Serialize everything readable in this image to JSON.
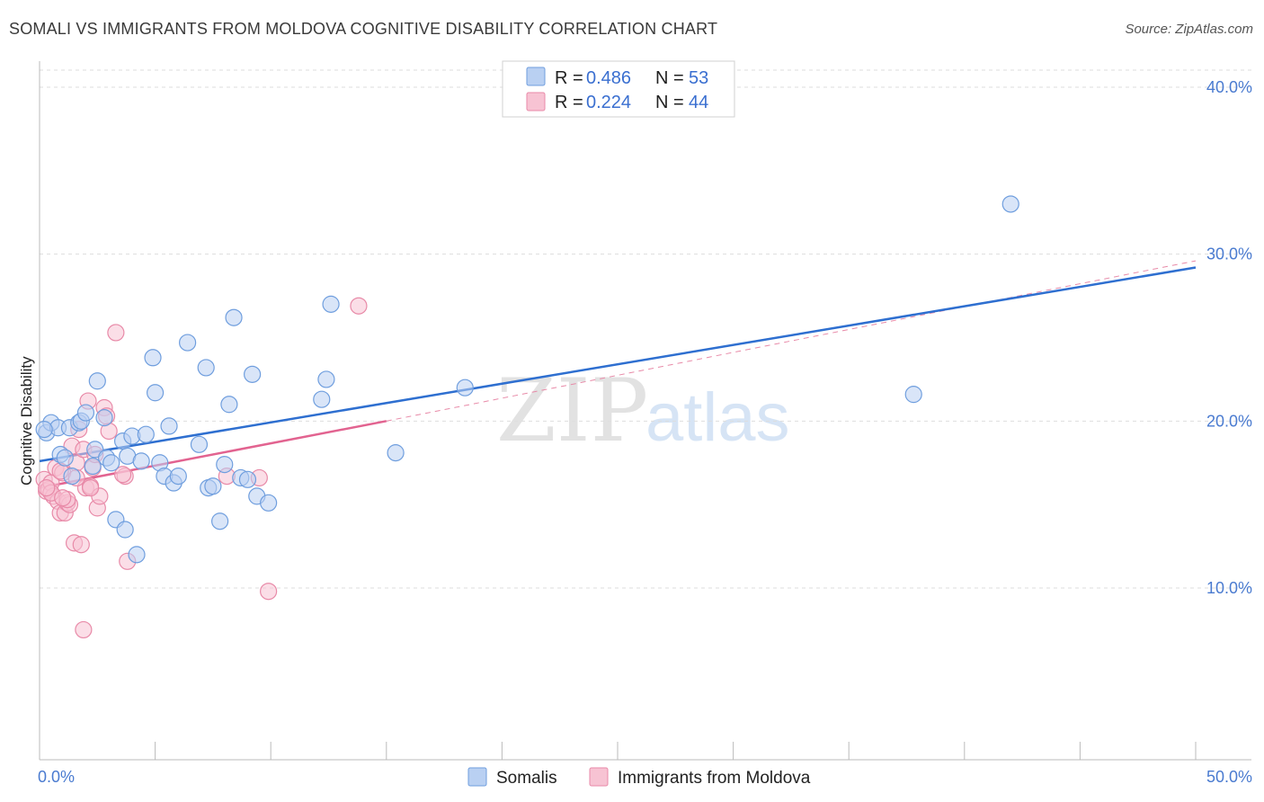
{
  "title": "SOMALI VS IMMIGRANTS FROM MOLDOVA COGNITIVE DISABILITY CORRELATION CHART",
  "source": "Source: ZipAtlas.com",
  "watermark": {
    "zip": "ZIP",
    "atlas": "atlas"
  },
  "colors": {
    "somali_fill": "#b9d0f2",
    "somali_stroke": "#6f9ede",
    "somali_line": "#2e6fd0",
    "moldova_fill": "#f7c3d3",
    "moldova_stroke": "#e88aa8",
    "moldova_line": "#e26390",
    "grid": "#dddddd"
  },
  "legend": {
    "rows": [
      {
        "r_label": "R = ",
        "r_value": "0.486",
        "n_label": "N = ",
        "n_value": "53"
      },
      {
        "r_label": "R = ",
        "r_value": "0.224",
        "n_label": "N = ",
        "n_value": "44"
      }
    ]
  },
  "chart_data": {
    "type": "scatter",
    "title": "SOMALI VS IMMIGRANTS FROM MOLDOVA COGNITIVE DISABILITY CORRELATION CHART",
    "xlabel": "",
    "ylabel": "Cognitive Disability",
    "xlim": [
      0,
      50
    ],
    "ylim": [
      0,
      42
    ],
    "x_tick_labels": [
      "0.0%",
      "50.0%"
    ],
    "y_ticks": [
      10,
      20,
      30,
      40
    ],
    "y_tick_labels": [
      "10.0%",
      "20.0%",
      "30.0%",
      "40.0%"
    ],
    "grid": true,
    "legend_position": "bottom",
    "series": [
      {
        "name": "Somalis",
        "points": [
          [
            0.3,
            19.3
          ],
          [
            0.5,
            19.9
          ],
          [
            0.8,
            19.6
          ],
          [
            0.9,
            18.0
          ],
          [
            1.1,
            17.8
          ],
          [
            1.3,
            19.6
          ],
          [
            1.4,
            16.7
          ],
          [
            1.7,
            19.9
          ],
          [
            1.8,
            20.0
          ],
          [
            2.0,
            20.5
          ],
          [
            2.3,
            17.3
          ],
          [
            2.4,
            18.3
          ],
          [
            2.5,
            22.4
          ],
          [
            2.8,
            20.2
          ],
          [
            2.9,
            17.8
          ],
          [
            3.1,
            17.5
          ],
          [
            3.3,
            14.1
          ],
          [
            3.6,
            18.8
          ],
          [
            3.7,
            13.5
          ],
          [
            3.8,
            17.9
          ],
          [
            4.0,
            19.1
          ],
          [
            4.2,
            12.0
          ],
          [
            4.4,
            17.6
          ],
          [
            4.6,
            19.2
          ],
          [
            4.9,
            23.8
          ],
          [
            5.0,
            21.7
          ],
          [
            5.2,
            17.5
          ],
          [
            5.4,
            16.7
          ],
          [
            5.6,
            19.7
          ],
          [
            5.8,
            16.3
          ],
          [
            6.0,
            16.7
          ],
          [
            6.4,
            24.7
          ],
          [
            6.9,
            18.6
          ],
          [
            7.2,
            23.2
          ],
          [
            7.3,
            16.0
          ],
          [
            7.5,
            16.1
          ],
          [
            7.8,
            14.0
          ],
          [
            8.0,
            17.4
          ],
          [
            8.2,
            21.0
          ],
          [
            8.4,
            26.2
          ],
          [
            8.7,
            16.6
          ],
          [
            9.0,
            16.5
          ],
          [
            9.2,
            22.8
          ],
          [
            9.4,
            15.5
          ],
          [
            9.9,
            15.1
          ],
          [
            12.2,
            21.3
          ],
          [
            12.4,
            22.5
          ],
          [
            12.6,
            27.0
          ],
          [
            15.4,
            18.1
          ],
          [
            18.4,
            22.0
          ],
          [
            37.8,
            21.6
          ],
          [
            42.0,
            33.0
          ],
          [
            0.2,
            19.5
          ]
        ]
      },
      {
        "name": "Immigrants from Moldova",
        "points": [
          [
            0.2,
            16.5
          ],
          [
            0.3,
            15.8
          ],
          [
            0.4,
            15.9
          ],
          [
            0.5,
            16.3
          ],
          [
            0.6,
            15.5
          ],
          [
            0.7,
            17.2
          ],
          [
            0.8,
            15.2
          ],
          [
            0.9,
            14.5
          ],
          [
            1.0,
            16.9
          ],
          [
            1.1,
            14.5
          ],
          [
            1.2,
            15.1
          ],
          [
            1.3,
            15.0
          ],
          [
            1.4,
            18.5
          ],
          [
            1.5,
            12.7
          ],
          [
            1.6,
            17.5
          ],
          [
            1.7,
            19.5
          ],
          [
            1.8,
            12.6
          ],
          [
            1.9,
            18.3
          ],
          [
            2.0,
            16.0
          ],
          [
            2.1,
            21.2
          ],
          [
            2.2,
            16.1
          ],
          [
            2.3,
            17.2
          ],
          [
            2.4,
            18.0
          ],
          [
            2.5,
            14.8
          ],
          [
            2.6,
            15.5
          ],
          [
            2.8,
            20.8
          ],
          [
            3.0,
            19.4
          ],
          [
            3.3,
            25.3
          ],
          [
            3.7,
            16.7
          ],
          [
            3.8,
            11.6
          ],
          [
            8.1,
            16.7
          ],
          [
            9.5,
            16.6
          ],
          [
            9.9,
            9.8
          ],
          [
            13.8,
            26.9
          ],
          [
            1.9,
            7.5
          ],
          [
            2.9,
            20.3
          ],
          [
            0.9,
            17.0
          ],
          [
            1.2,
            15.3
          ],
          [
            0.5,
            15.7
          ],
          [
            2.2,
            16.0
          ],
          [
            1.0,
            15.4
          ],
          [
            0.3,
            16.0
          ],
          [
            1.6,
            16.6
          ],
          [
            3.6,
            16.8
          ]
        ]
      }
    ],
    "trend_lines": [
      {
        "series": "Somalis",
        "from": [
          0,
          17.6
        ],
        "to": [
          50,
          29.2
        ]
      },
      {
        "series": "Immigrants from Moldova",
        "from": [
          0,
          16.0
        ],
        "to": [
          15,
          20.0
        ]
      },
      {
        "series": "Immigrants from Moldova (extrapolated)",
        "from": [
          15,
          20.0
        ],
        "to": [
          50,
          29.6
        ]
      }
    ]
  }
}
